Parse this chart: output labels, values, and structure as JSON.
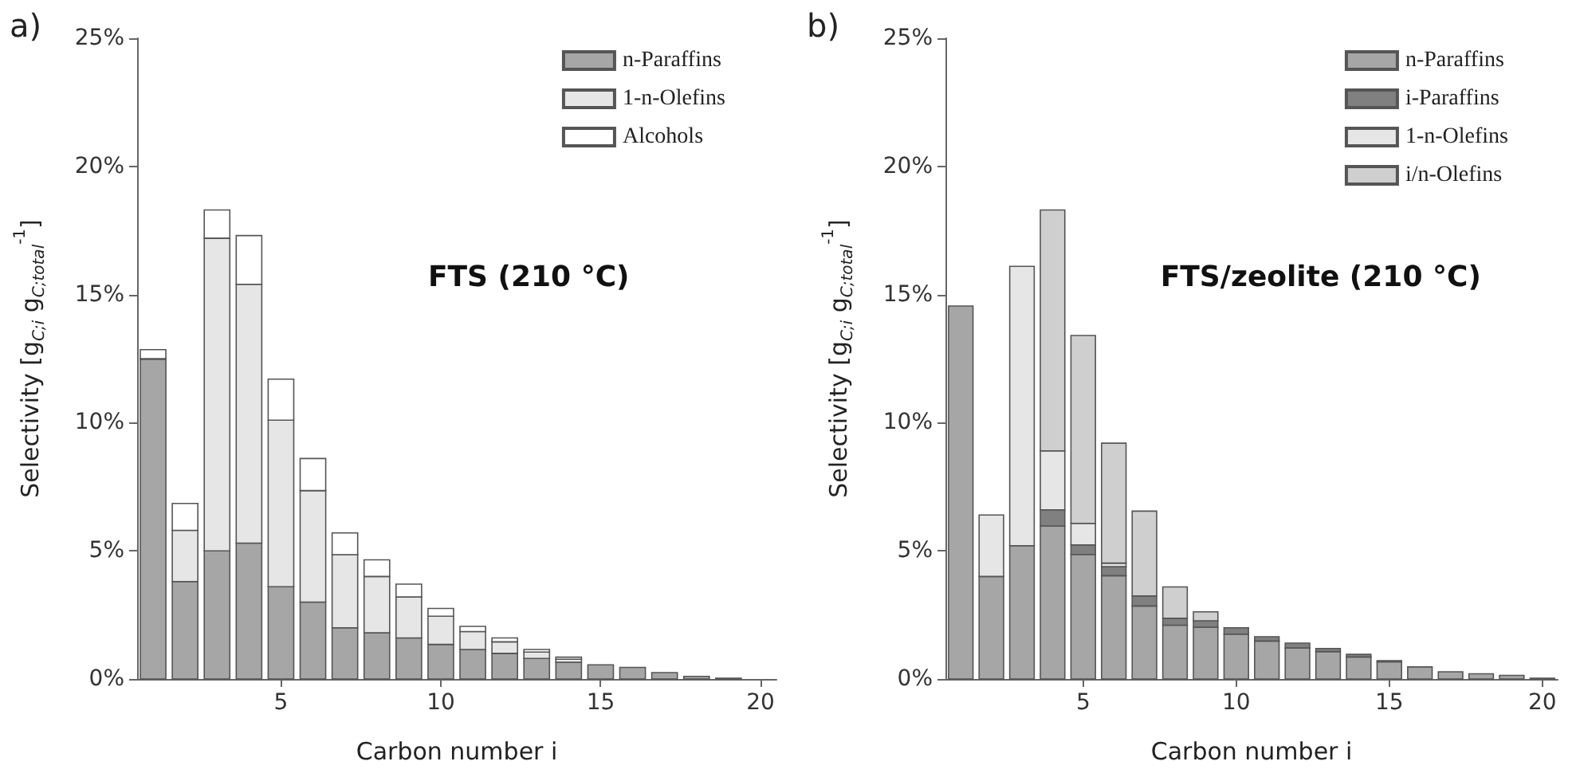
{
  "chart_data": [
    {
      "type": "bar",
      "stacked": true,
      "title": "FTS (210 °C)",
      "xlabel": "Carbon number i",
      "ylabel": "Selectivity [g$_{C;i}$ g$_{C;total}$$^{-1}$]",
      "annotations": [
        "a)"
      ],
      "x": [
        1,
        2,
        3,
        4,
        5,
        6,
        7,
        8,
        9,
        10,
        11,
        12,
        13,
        14,
        15,
        16,
        17,
        18,
        19
      ],
      "series": [
        {
          "name": "n-Paraffins",
          "color": "#a6a6a6",
          "values": [
            12.5,
            3.8,
            5.0,
            5.3,
            3.6,
            3.0,
            2.0,
            1.8,
            1.6,
            1.35,
            1.15,
            1.0,
            0.8,
            0.65,
            0.55,
            0.45,
            0.25,
            0.1,
            0.03
          ]
        },
        {
          "name": "1-n-Olefins",
          "color": "#e6e6e6",
          "values": [
            0,
            2.0,
            12.2,
            10.1,
            6.5,
            4.35,
            2.85,
            2.2,
            1.6,
            1.1,
            0.7,
            0.45,
            0.25,
            0.12,
            null,
            null,
            null,
            null,
            null
          ]
        },
        {
          "name": "Alcohols",
          "color": "#ffffff",
          "values": [
            0.35,
            1.05,
            1.1,
            1.9,
            1.6,
            1.25,
            0.85,
            0.65,
            0.5,
            0.3,
            0.2,
            0.15,
            0.1,
            0.08,
            null,
            null,
            null,
            null,
            null
          ]
        }
      ],
      "xlim": [
        0.5,
        20.5
      ],
      "xticks": [
        5,
        10,
        15,
        20
      ],
      "ylim": [
        0,
        25
      ],
      "yticks": [
        {
          "value": 0,
          "label": "0%"
        },
        {
          "value": 5,
          "label": "5%"
        },
        {
          "value": 10,
          "label": "10%"
        },
        {
          "value": 15,
          "label": "15%"
        },
        {
          "value": 20,
          "label": "20%"
        },
        {
          "value": 25,
          "label": "25%"
        }
      ],
      "legend": "top right",
      "grid": false
    },
    {
      "type": "bar",
      "stacked": true,
      "title": "FTS/zeolite (210 °C)",
      "xlabel": "Carbon number i",
      "ylabel": "Selectivity [g$_{C;i}$ g$_{C;total}$$^{-1}$]",
      "annotations": [
        "b)"
      ],
      "x": [
        1,
        2,
        3,
        4,
        5,
        6,
        7,
        8,
        9,
        10,
        11,
        12,
        13,
        14,
        15,
        16,
        17,
        18,
        19,
        20
      ],
      "series": [
        {
          "name": "n-Paraffins",
          "color": "#a6a6a6",
          "values": [
            14.55,
            4.0,
            5.2,
            5.97,
            4.86,
            4.03,
            2.85,
            2.1,
            2.02,
            1.75,
            1.48,
            1.21,
            1.07,
            0.86,
            0.67,
            0.47,
            0.28,
            0.2,
            0.14,
            0.03
          ]
        },
        {
          "name": "i-Paraffins",
          "color": "#808080",
          "values": [
            null,
            null,
            null,
            0.63,
            0.37,
            0.35,
            0.39,
            0.27,
            0.25,
            0.25,
            0.17,
            0.19,
            0.12,
            0.1,
            0.04,
            null,
            null,
            null,
            null,
            null
          ]
        },
        {
          "name": "1-n-Olefins",
          "color": "#e6e6e6",
          "values": [
            null,
            2.4,
            10.9,
            2.3,
            0.84,
            0.14,
            null,
            null,
            null,
            null,
            null,
            null,
            null,
            null,
            null,
            null,
            null,
            null,
            null,
            null
          ]
        },
        {
          "name": "i/n-Olefins",
          "color": "#cfcfcf",
          "values": [
            null,
            null,
            null,
            9.4,
            7.33,
            4.68,
            3.31,
            1.22,
            0.35,
            null,
            null,
            null,
            null,
            null,
            null,
            null,
            null,
            null,
            null,
            null
          ]
        }
      ],
      "xlim": [
        0.5,
        20.5
      ],
      "xticks": [
        5,
        10,
        15,
        20
      ],
      "ylim": [
        0,
        25
      ],
      "yticks": [
        {
          "value": 0,
          "label": "0%"
        },
        {
          "value": 5,
          "label": "5%"
        },
        {
          "value": 10,
          "label": "10%"
        },
        {
          "value": 15,
          "label": "15%"
        },
        {
          "value": 20,
          "label": "20%"
        },
        {
          "value": 25,
          "label": "25%"
        }
      ],
      "legend": "top right",
      "grid": false
    }
  ]
}
